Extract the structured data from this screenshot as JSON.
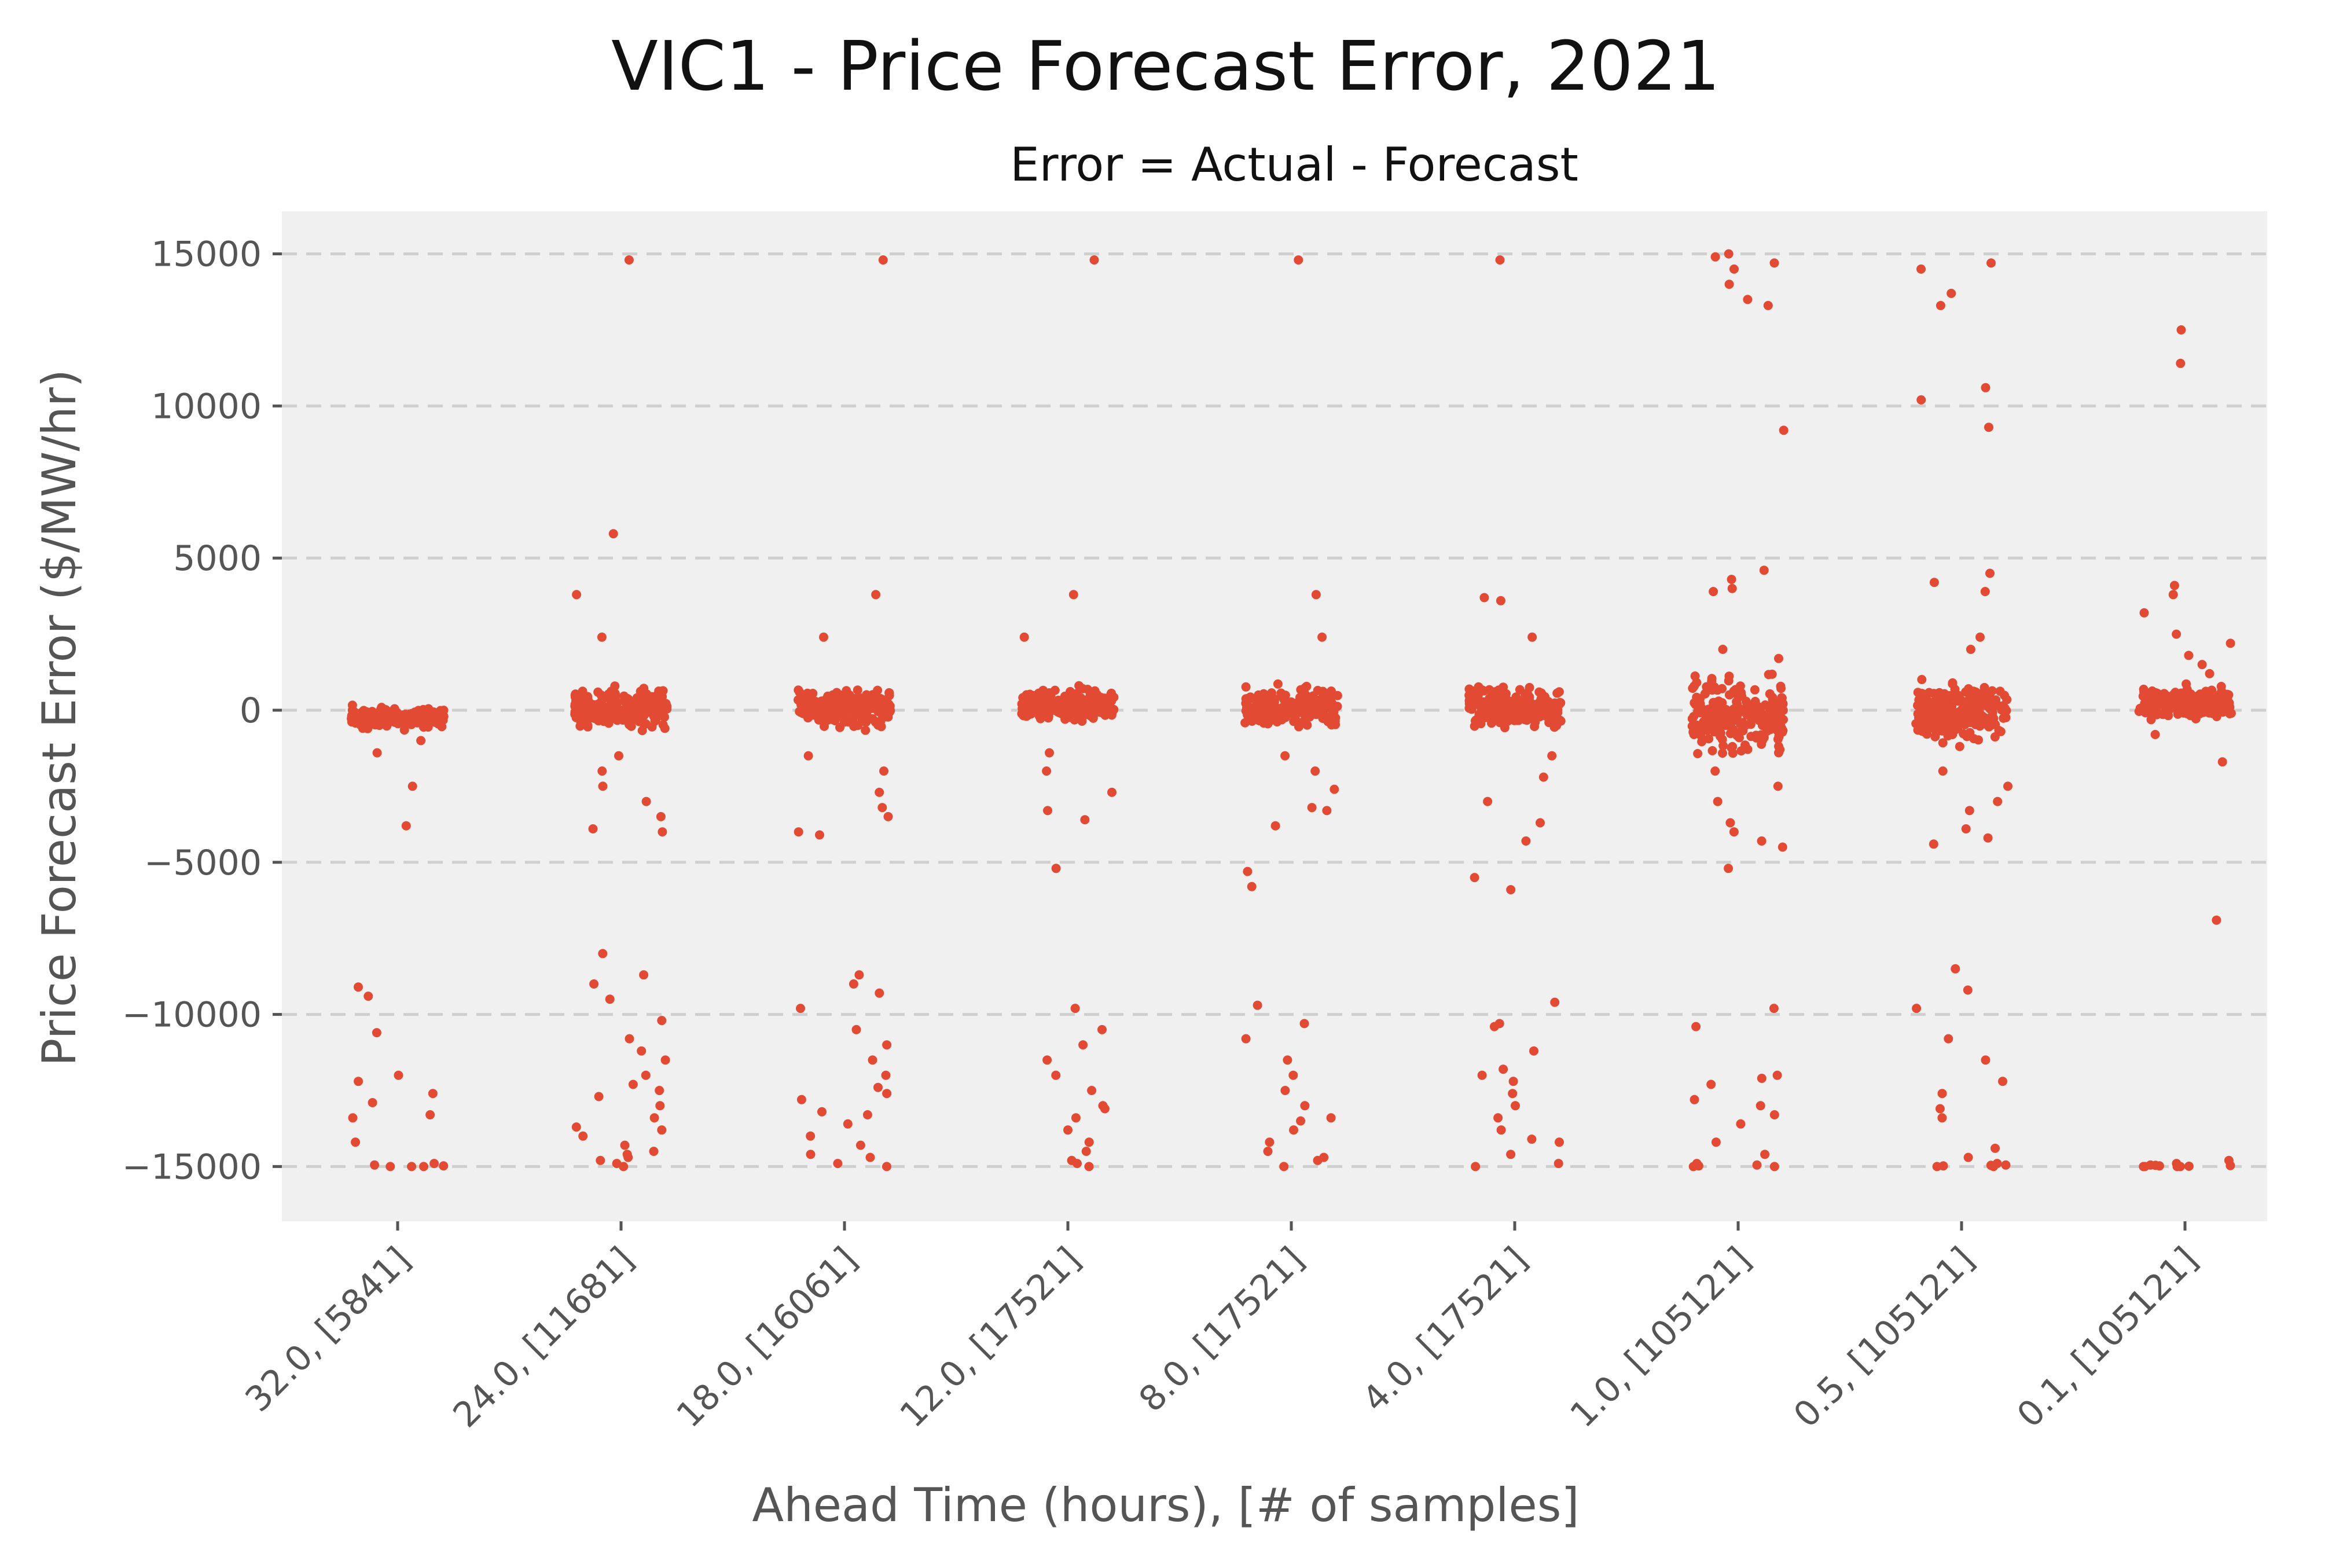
{
  "chart_data": {
    "type": "scatter",
    "title": "VIC1 - Price Forecast Error, 2021",
    "subtitle": "Error = Actual - Forecast",
    "xlabel": "Ahead Time (hours), [# of samples]",
    "ylabel": "Price Forecast Error ($/MW/hr)",
    "ylim": [
      -16800,
      16400
    ],
    "yticks": [
      15000,
      10000,
      5000,
      0,
      -5000,
      -10000,
      -15000
    ],
    "ytick_labels": [
      "15000",
      "10000",
      "5000",
      "0",
      "−5000",
      "−10000",
      "−15000"
    ],
    "grid": "horizontal dashed",
    "color": "#e24a33",
    "categories": [
      "32.0, [5841]",
      "24.0, [11681]",
      "18.0, [16061]",
      "12.0, [17521]",
      "8.0, [17521]",
      "4.0, [17521]",
      "1.0, [105121]",
      "0.5, [105121]",
      "0.1, [105121]"
    ],
    "series": [
      {
        "name": "32.0, [5841]",
        "core_range": [
          -700,
          200
        ],
        "values": [
          -1000,
          -1400,
          -2500,
          -3800,
          -9400,
          -9100,
          -10600,
          -12000,
          -12200,
          -12600,
          -12900,
          -13300,
          -13400,
          -14200,
          -14900,
          -15000,
          -15000,
          -14950,
          -14980,
          -15000
        ]
      },
      {
        "name": "24.0, [11681]",
        "core_range": [
          -800,
          900
        ],
        "values": [
          14800,
          5800,
          3800,
          2400,
          -1500,
          -2000,
          -2500,
          -3000,
          -3500,
          -4000,
          -3900,
          -8000,
          -8700,
          -9000,
          -9500,
          -10200,
          -10800,
          -11200,
          -11500,
          -12000,
          -12300,
          -12700,
          -13000,
          -13400,
          -13700,
          -14000,
          -14300,
          -14500,
          -14700,
          -14900,
          -15000,
          -14800,
          -14600,
          -13800,
          -12500
        ]
      },
      {
        "name": "18.0, [16061]",
        "core_range": [
          -800,
          900
        ],
        "values": [
          14800,
          3800,
          2400,
          -1500,
          -2000,
          -2700,
          -3200,
          -3500,
          -4000,
          -4100,
          -8700,
          -9000,
          -9300,
          -9800,
          -10500,
          -11000,
          -11500,
          -12000,
          -12400,
          -12800,
          -13200,
          -13600,
          -14000,
          -14300,
          -14600,
          -14900,
          -15000,
          -14700,
          -13300,
          -12600
        ]
      },
      {
        "name": "12.0, [17521]",
        "core_range": [
          -600,
          900
        ],
        "values": [
          14800,
          3800,
          2400,
          -1400,
          -2000,
          -2700,
          -3300,
          -3600,
          -5200,
          -9800,
          -10500,
          -11000,
          -11500,
          -12000,
          -12500,
          -13000,
          -13400,
          -13800,
          -14200,
          -14500,
          -14800,
          -15000,
          -14900,
          -13100
        ]
      },
      {
        "name": "8.0, [17521]",
        "core_range": [
          -800,
          1000
        ],
        "values": [
          14800,
          3800,
          2400,
          -1500,
          -2000,
          -2600,
          -3200,
          -3300,
          -3800,
          -5300,
          -5800,
          -9700,
          -10300,
          -10800,
          -11500,
          -12000,
          -12500,
          -13000,
          -13400,
          -13800,
          -14200,
          -14500,
          -14800,
          -15000,
          -14700,
          -13500
        ]
      },
      {
        "name": "4.0, [17521]",
        "core_range": [
          -800,
          1000
        ],
        "values": [
          14800,
          3700,
          3600,
          2400,
          -1500,
          -2200,
          -3000,
          -3700,
          -4300,
          -5500,
          -5900,
          -9600,
          -10300,
          -10400,
          -11200,
          -11800,
          -12200,
          -12600,
          -13000,
          -13400,
          -13800,
          -14200,
          -14600,
          -14900,
          -15000,
          -14100,
          -12000
        ]
      },
      {
        "name": "1.0, [105121]",
        "core_range": [
          -1800,
          1500
        ],
        "values": [
          15000,
          14900,
          14700,
          14500,
          14000,
          13500,
          13300,
          9200,
          4600,
          4300,
          4000,
          3900,
          2000,
          1700,
          -2000,
          -2500,
          -3000,
          -3700,
          -4000,
          -4300,
          -4500,
          -5200,
          -9800,
          -10400,
          -12000,
          -12300,
          -12800,
          -13300,
          -13600,
          -14200,
          -14600,
          -14900,
          -15000,
          -15000,
          -14950,
          -14980,
          -13000,
          -12100
        ]
      },
      {
        "name": "0.5, [105121]",
        "core_range": [
          -1300,
          1200
        ],
        "values": [
          14700,
          14500,
          13700,
          13300,
          10600,
          10200,
          9300,
          4500,
          4200,
          3900,
          2400,
          2000,
          -2000,
          -2500,
          -3000,
          -3300,
          -3900,
          -4200,
          -4400,
          -8500,
          -9200,
          -9800,
          -10800,
          -11500,
          -12200,
          -12600,
          -13100,
          -13400,
          -14400,
          -14700,
          -14900,
          -15000,
          -14950,
          -15000,
          -14980,
          -14960
        ]
      },
      {
        "name": "0.1, [105121]",
        "core_range": [
          -500,
          900
        ],
        "values": [
          12500,
          11400,
          4100,
          3800,
          3200,
          2500,
          2200,
          1800,
          1500,
          1200,
          -800,
          -1700,
          -6900,
          -14800,
          -14900,
          -14950,
          -15000,
          -15000,
          -14980,
          -15000,
          -14970,
          -14990,
          -15000,
          -14960
        ]
      }
    ]
  }
}
